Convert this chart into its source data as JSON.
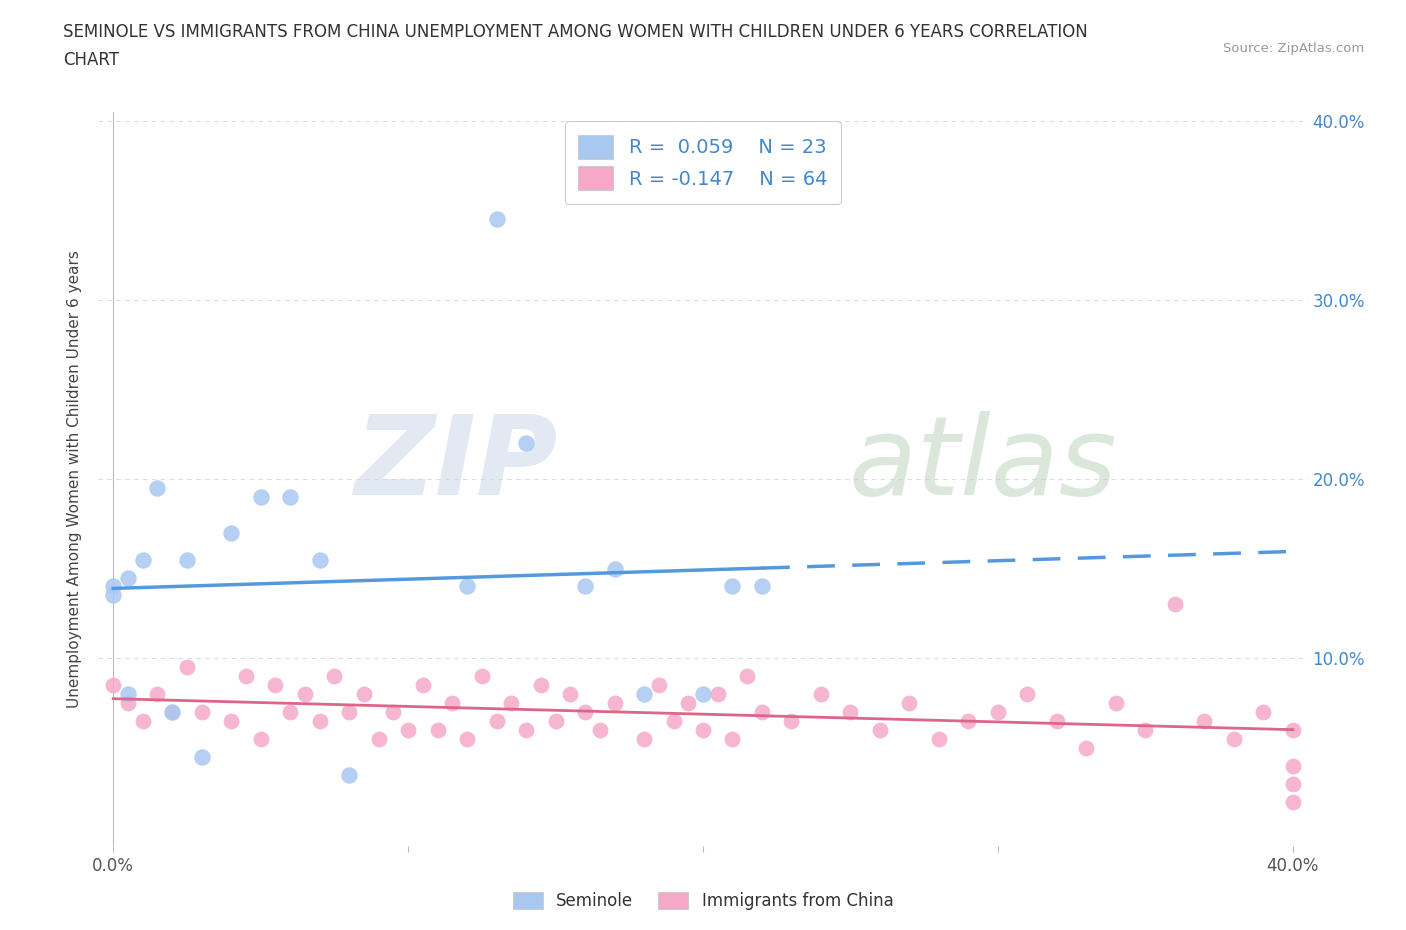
{
  "title_line1": "SEMINOLE VS IMMIGRANTS FROM CHINA UNEMPLOYMENT AMONG WOMEN WITH CHILDREN UNDER 6 YEARS CORRELATION",
  "title_line2": "CHART",
  "source_text": "Source: ZipAtlas.com",
  "ylabel": "Unemployment Among Women with Children Under 6 years",
  "xlim": [
    -0.005,
    0.405
  ],
  "ylim": [
    -0.005,
    0.405
  ],
  "x_ticks": [
    0.0,
    0.1,
    0.2,
    0.3,
    0.4
  ],
  "y_ticks": [
    0.0,
    0.1,
    0.2,
    0.3,
    0.4
  ],
  "right_y_tick_labels": [
    "",
    "10.0%",
    "20.0%",
    "30.0%",
    "40.0%"
  ],
  "x_tick_labels_bottom": [
    "0.0%",
    "",
    "",
    "",
    "40.0%"
  ],
  "legend_text1": "R =  0.059    N = 23",
  "legend_text2": "R = -0.147    N = 64",
  "seminole_color": "#a8c8f0",
  "china_color": "#f5a8c8",
  "seminole_line_color": "#5599dd",
  "china_line_color": "#dd6688",
  "background_color": "#ffffff",
  "grid_color": "#dddddd",
  "tick_color": "#4488cc",
  "seminole_x": [
    0.0,
    0.0,
    0.005,
    0.005,
    0.01,
    0.015,
    0.02,
    0.025,
    0.03,
    0.04,
    0.05,
    0.06,
    0.07,
    0.08,
    0.12,
    0.13,
    0.14,
    0.16,
    0.17,
    0.18,
    0.2,
    0.21,
    0.22
  ],
  "seminole_y": [
    0.135,
    0.14,
    0.08,
    0.145,
    0.155,
    0.195,
    0.07,
    0.155,
    0.045,
    0.17,
    0.19,
    0.19,
    0.155,
    0.035,
    0.14,
    0.345,
    0.22,
    0.14,
    0.15,
    0.08,
    0.08,
    0.14,
    0.14
  ],
  "china_x": [
    0.0,
    0.005,
    0.01,
    0.015,
    0.02,
    0.025,
    0.03,
    0.04,
    0.045,
    0.05,
    0.055,
    0.06,
    0.065,
    0.07,
    0.075,
    0.08,
    0.085,
    0.09,
    0.095,
    0.1,
    0.105,
    0.11,
    0.115,
    0.12,
    0.125,
    0.13,
    0.135,
    0.14,
    0.145,
    0.15,
    0.155,
    0.16,
    0.165,
    0.17,
    0.18,
    0.185,
    0.19,
    0.195,
    0.2,
    0.205,
    0.21,
    0.215,
    0.22,
    0.23,
    0.24,
    0.25,
    0.26,
    0.27,
    0.28,
    0.29,
    0.3,
    0.31,
    0.32,
    0.33,
    0.34,
    0.35,
    0.36,
    0.37,
    0.38,
    0.39,
    0.4,
    0.4,
    0.4,
    0.4
  ],
  "china_y": [
    0.085,
    0.075,
    0.065,
    0.08,
    0.07,
    0.095,
    0.07,
    0.065,
    0.09,
    0.055,
    0.085,
    0.07,
    0.08,
    0.065,
    0.09,
    0.07,
    0.08,
    0.055,
    0.07,
    0.06,
    0.085,
    0.06,
    0.075,
    0.055,
    0.09,
    0.065,
    0.075,
    0.06,
    0.085,
    0.065,
    0.08,
    0.07,
    0.06,
    0.075,
    0.055,
    0.085,
    0.065,
    0.075,
    0.06,
    0.08,
    0.055,
    0.09,
    0.07,
    0.065,
    0.08,
    0.07,
    0.06,
    0.075,
    0.055,
    0.065,
    0.07,
    0.08,
    0.065,
    0.05,
    0.075,
    0.06,
    0.13,
    0.065,
    0.055,
    0.07,
    0.02,
    0.04,
    0.06,
    0.03
  ]
}
